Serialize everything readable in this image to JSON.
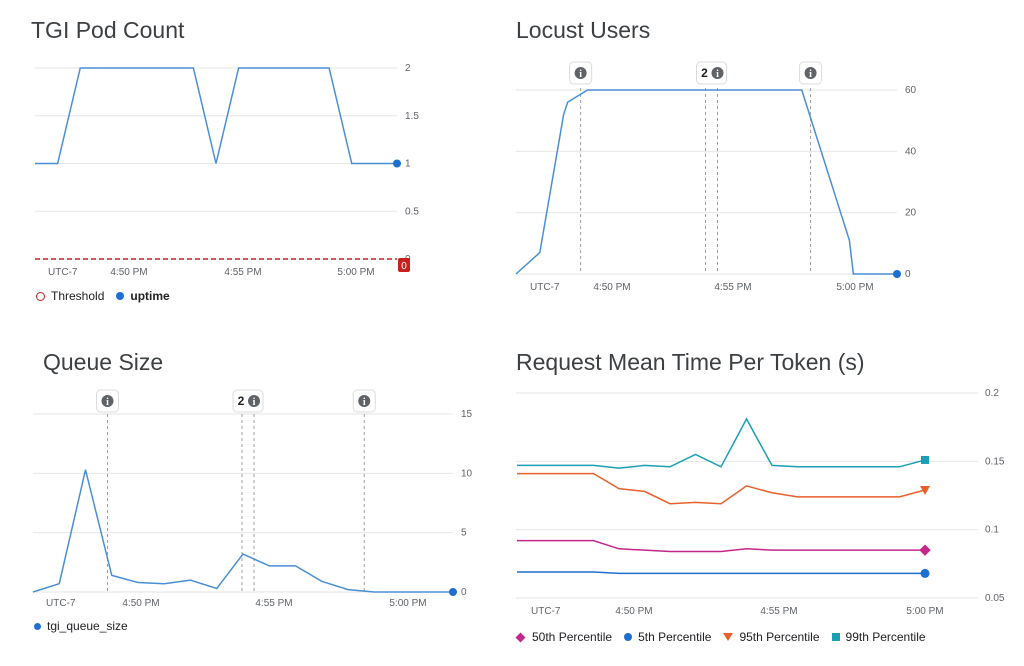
{
  "chart_data": [
    {
      "type": "line",
      "title": "TGI Pod Count",
      "x_ticks": [
        "UTC-7",
        "4:50 PM",
        "4:55 PM",
        "5:00 PM"
      ],
      "ylim": [
        0,
        2
      ],
      "y_ticks": [
        "2",
        "1.5",
        "1",
        "0.5",
        "0"
      ],
      "grid": true,
      "legend_position": "bottom-left",
      "series": [
        {
          "name": "uptime",
          "color": "#4a8fd6",
          "x": [
            "4:46 PM",
            "4:47 PM",
            "4:48 PM",
            "4:49 PM",
            "4:50 PM",
            "4:51 PM",
            "4:52 PM",
            "4:53 PM",
            "4:54 PM",
            "4:55 PM",
            "4:56 PM",
            "4:57 PM",
            "4:58 PM",
            "4:59 PM",
            "5:00 PM",
            "5:01 PM",
            "5:02 PM"
          ],
          "values": [
            1,
            1,
            2,
            2,
            2,
            2,
            2,
            2,
            1,
            2,
            2,
            2,
            2,
            2,
            1,
            1,
            1
          ]
        },
        {
          "name": "Threshold",
          "color": "#c5221f",
          "values": [
            0,
            0
          ]
        }
      ],
      "threshold_label": "0",
      "last_value_marker": 1
    },
    {
      "type": "line",
      "title": "Locust Users",
      "x_ticks": [
        "UTC-7",
        "4:50 PM",
        "4:55 PM",
        "5:00 PM"
      ],
      "ylim": [
        0,
        60
      ],
      "y_ticks": [
        "60",
        "40",
        "20",
        "0"
      ],
      "grid": true,
      "series": [
        {
          "name": "",
          "color": "#4a8fd6",
          "x": [
            "4:46 PM",
            "4:47 PM",
            "4:48 PM",
            "4:48 PM",
            "4:49 PM",
            "4:50 PM",
            "4:55 PM",
            "4:58 PM",
            "5:00 PM",
            "5:00 PM",
            "5:02 PM"
          ],
          "values": [
            0,
            7,
            52,
            56,
            60,
            60,
            60,
            60,
            11,
            0,
            0
          ]
        }
      ],
      "annotations": [
        {
          "label": "",
          "x": "4:48 PM"
        },
        {
          "label": "2",
          "x": "4:54 PM"
        },
        {
          "label": "",
          "x": "4:59 PM"
        }
      ]
    },
    {
      "type": "line",
      "title": "Queue Size",
      "x_ticks": [
        "UTC-7",
        "4:50 PM",
        "4:55 PM",
        "5:00 PM"
      ],
      "ylim": [
        0,
        15
      ],
      "y_ticks": [
        "15",
        "10",
        "5",
        "0"
      ],
      "grid": true,
      "legend_position": "bottom-left",
      "series": [
        {
          "name": "tgi_queue_size",
          "color": "#4a8fd6",
          "x": [
            "4:46 PM",
            "4:47 PM",
            "4:48 PM",
            "4:49 PM",
            "4:50 PM",
            "4:51 PM",
            "4:52 PM",
            "4:53 PM",
            "4:54 PM",
            "4:55 PM",
            "4:56 PM",
            "4:57 PM",
            "4:58 PM",
            "4:59 PM",
            "5:00 PM",
            "5:01 PM",
            "5:02 PM"
          ],
          "values": [
            0,
            0.7,
            10.3,
            1.4,
            0.8,
            0.7,
            1,
            0.3,
            3.2,
            2.2,
            2.2,
            0.9,
            0.2,
            0,
            0,
            0,
            0
          ]
        }
      ],
      "annotations": [
        {
          "label": "",
          "x": "4:48 PM"
        },
        {
          "label": "2",
          "x": "4:54 PM"
        },
        {
          "label": "",
          "x": "4:59 PM"
        }
      ],
      "last_value_marker": 0
    },
    {
      "type": "line",
      "title": "Request Mean Time Per Token (s)",
      "x_ticks": [
        "UTC-7",
        "4:50 PM",
        "4:55 PM",
        "5:00 PM"
      ],
      "ylim": [
        0.05,
        0.2
      ],
      "y_ticks": [
        "0.2",
        "0.15",
        "0.1",
        "0.05"
      ],
      "grid": true,
      "legend_position": "bottom-left",
      "series": [
        {
          "name": "50th Percentile",
          "color": "#c2278c",
          "marker": "diamond",
          "values": [
            0.092,
            0.092,
            0.092,
            0.092,
            0.086,
            0.085,
            0.084,
            0.084,
            0.084,
            0.086,
            0.085,
            0.085,
            0.085,
            0.085,
            0.085,
            0.085,
            0.085
          ]
        },
        {
          "name": "5th Percentile",
          "color": "#1f6fd1",
          "marker": "circle",
          "values": [
            0.069,
            0.069,
            0.069,
            0.069,
            0.068,
            0.068,
            0.068,
            0.068,
            0.068,
            0.068,
            0.068,
            0.068,
            0.068,
            0.068,
            0.068,
            0.068,
            0.068
          ]
        },
        {
          "name": "95th Percentile",
          "color": "#e8612c",
          "marker": "triangle",
          "values": [
            0.141,
            0.141,
            0.141,
            0.141,
            0.13,
            0.128,
            0.119,
            0.12,
            0.119,
            0.132,
            0.127,
            0.124,
            0.124,
            0.124,
            0.124,
            0.124,
            0.129
          ]
        },
        {
          "name": "99th Percentile",
          "color": "#1a9fb3",
          "marker": "square",
          "values": [
            0.147,
            0.147,
            0.147,
            0.147,
            0.145,
            0.147,
            0.146,
            0.155,
            0.146,
            0.181,
            0.147,
            0.146,
            0.146,
            0.146,
            0.146,
            0.146,
            0.151
          ]
        }
      ]
    }
  ]
}
